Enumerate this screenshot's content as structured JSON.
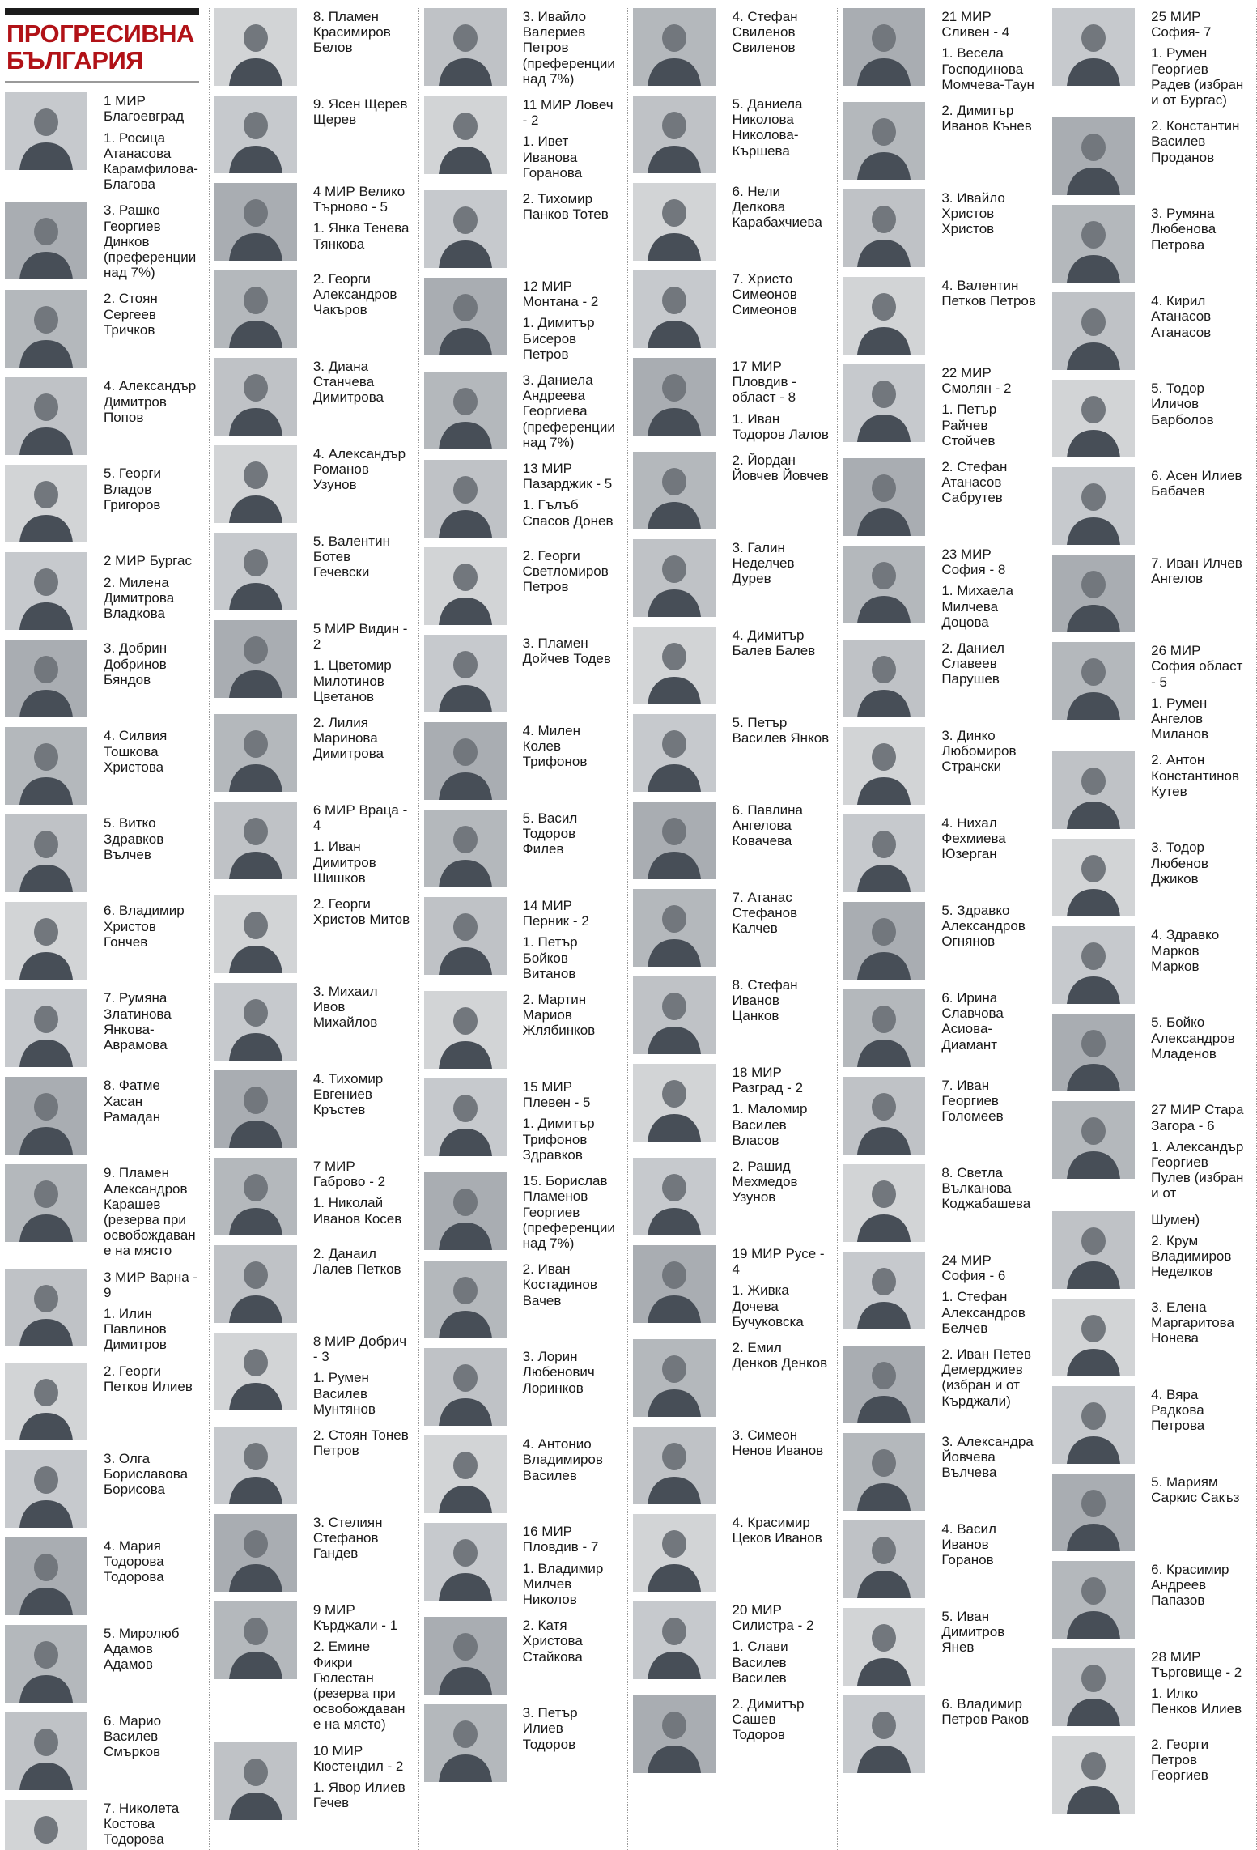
{
  "header": {
    "party_name": "ПРОГРЕСИВНА БЪЛГАРИЯ",
    "title_color": "#b11217",
    "top_bar_color": "#1c1c1c"
  },
  "columns": [
    {
      "entries": [
        {
          "texts": [
            "1 МИР Благоевград",
            "1. Росица Атанасова Карамфилова-Благова"
          ]
        },
        {
          "texts": [
            "3. Рашко Георгиев Динков (преференции над 7%)"
          ]
        },
        {
          "texts": [
            "2. Стоян Сергеев Тричков"
          ]
        },
        {
          "texts": [
            "4. Александър Димитров Попов"
          ]
        },
        {
          "texts": [
            "5. Георги Владов Григоров"
          ]
        },
        {
          "texts": [
            "2 МИР Бургас",
            "2. Милена Димитрова Владкова"
          ]
        },
        {
          "texts": [
            "3. Добрин Добринов Бяндов"
          ]
        },
        {
          "texts": [
            "4. Силвия Тошкова Христова"
          ]
        },
        {
          "texts": [
            "5. Витко Здравков Вълчев"
          ]
        },
        {
          "texts": [
            "6. Владимир Христов Гончев"
          ]
        },
        {
          "texts": [
            "7. Румяна Златинова Янкова-Аврамова"
          ]
        },
        {
          "texts": [
            "8. Фатме Хасан Рамадан"
          ]
        },
        {
          "texts": [
            "9. Пламен Александров Карашев (резерва при освобождаване на място"
          ]
        },
        {
          "texts": [
            "3 МИР Варна - 9",
            "1. Илин Павлинов Димитров"
          ]
        },
        {
          "texts": [
            "2. Георги Петков Илиев"
          ]
        },
        {
          "texts": [
            "3. Олга Бориславова Борисова"
          ]
        },
        {
          "texts": [
            "4. Мария Тодорова Тодорова"
          ]
        },
        {
          "texts": [
            "5. Миролюб Адамов Адамов"
          ]
        },
        {
          "texts": [
            "6. Марио Василев Смърков"
          ]
        },
        {
          "texts": [
            "7. Николета Костова Тодорова"
          ]
        }
      ]
    },
    {
      "entries": [
        {
          "texts": [
            "8. Пламен Красимиров Белов"
          ]
        },
        {
          "texts": [
            "9. Ясен Щерев Щерев"
          ]
        },
        {
          "texts": [
            "4 МИР Велико Търново - 5",
            "1. Янка Тенева Тянкова"
          ]
        },
        {
          "texts": [
            "2. Георги Александров Чакъров"
          ]
        },
        {
          "texts": [
            "3. Диана Станчева Димитрова"
          ]
        },
        {
          "texts": [
            "4. Александър Романов Узунов"
          ]
        },
        {
          "texts": [
            "5. Валентин Ботев Гечевски"
          ]
        },
        {
          "texts": [
            "5 МИР Видин - 2",
            "1. Цветомир Милотинов Цветанов"
          ]
        },
        {
          "texts": [
            "2. Лилия Маринова Димитрова"
          ]
        },
        {
          "texts": [
            "6 МИР Враца - 4",
            "1. Иван Димитров Шишков"
          ]
        },
        {
          "texts": [
            "2. Георги Христов Митов"
          ]
        },
        {
          "texts": [
            "3. Михаил Ивов Михайлов"
          ]
        },
        {
          "texts": [
            "4. Тихомир Евгениев Кръстев"
          ]
        },
        {
          "texts": [
            "7 МИР Габрово - 2",
            "1. Николай Иванов Косев"
          ]
        },
        {
          "texts": [
            "2. Данаил Лалев Петков"
          ]
        },
        {
          "texts": [
            "8 МИР Добрич - 3",
            "1. Румен Василев Мунтянов"
          ]
        },
        {
          "texts": [
            "2. Стоян Тонев Петров"
          ]
        },
        {
          "texts": [
            "3. Стелиян Стефанов Гандев"
          ]
        },
        {
          "texts": [
            "9 МИР Кърджали - 1",
            "2. Емине Фикри Гюлестан (резерва при освобождаване на място)"
          ]
        },
        {
          "texts": [
            "10 МИР Кюстендил - 2",
            "1. Явор Илиев Гечев"
          ]
        }
      ]
    },
    {
      "entries": [
        {
          "texts": [
            "3. Ивайло Валериев Петров (преференции над 7%)"
          ]
        },
        {
          "texts": [
            "11 МИР Ловеч - 2",
            "1. Ивет Иванова Горанова"
          ]
        },
        {
          "texts": [
            "2. Тихомир Панков Тотев"
          ]
        },
        {
          "texts": [
            "12 МИР Монтана - 2",
            "1. Димитър Бисеров Петров"
          ]
        },
        {
          "texts": [
            "3. Даниела Андреева Георгиева (преференции над 7%)"
          ]
        },
        {
          "texts": [
            "13 МИР Пазарджик - 5",
            "1. Гълъб Спасов Донев"
          ]
        },
        {
          "texts": [
            "2. Георги Светломиров Петров"
          ]
        },
        {
          "texts": [
            "3. Пламен Дойчев Тодев"
          ]
        },
        {
          "texts": [
            "4. Милен Колев Трифонов"
          ]
        },
        {
          "texts": [
            "5. Васил Тодоров Филев"
          ]
        },
        {
          "texts": [
            "14 МИР Перник - 2",
            "1. Петър Бойков Витанов"
          ]
        },
        {
          "texts": [
            "2. Мартин Мариов Жлябинков"
          ]
        },
        {
          "texts": [
            "15 МИР Плевен - 5",
            "1. Димитър Трифонов Здравков"
          ]
        },
        {
          "texts": [
            "15. Борислав Пламенов Георгиев (преференции над 7%)"
          ]
        },
        {
          "texts": [
            "2. Иван Костадинов Вачев"
          ]
        },
        {
          "texts": [
            "3. Лорин Любенович Лоринков"
          ]
        },
        {
          "texts": [
            "4. Антонио Владимиров Василев"
          ]
        },
        {
          "texts": [
            "16 МИР Пловдив - 7",
            "1. Владимир Милчев Николов"
          ]
        },
        {
          "texts": [
            "2. Катя Христова Стайкова"
          ]
        },
        {
          "texts": [
            "3. Петър Илиев Тодоров"
          ]
        }
      ]
    },
    {
      "entries": [
        {
          "texts": [
            "4. Стефан Свиленов Свиленов"
          ]
        },
        {
          "texts": [
            "5. Даниела Николова Николова-Кършева"
          ]
        },
        {
          "texts": [
            "6. Нели Делкова Карабахчиева"
          ]
        },
        {
          "texts": [
            "7. Христо Симеонов Симеонов"
          ]
        },
        {
          "texts": [
            "17 МИР Пловдив - област - 8",
            "1. Иван Тодоров Лалов"
          ]
        },
        {
          "texts": [
            "2. Йордан Йовчев Йовчев"
          ]
        },
        {
          "texts": [
            "3. Галин Неделчев Дурев"
          ]
        },
        {
          "texts": [
            "4. Димитър Балев Балев"
          ]
        },
        {
          "texts": [
            "5. Петър Василев Янков"
          ]
        },
        {
          "texts": [
            "6. Павлина Ангелова Ковачева"
          ]
        },
        {
          "texts": [
            "7. Атанас Стефанов Калчев"
          ]
        },
        {
          "texts": [
            "8. Стефан Иванов Цанков"
          ]
        },
        {
          "texts": [
            "18 МИР Разград - 2",
            "1. Маломир Василев Власов"
          ]
        },
        {
          "texts": [
            "2. Рашид Мехмедов Узунов"
          ]
        },
        {
          "texts": [
            "19 МИР Русе - 4",
            "1. Живка Дочева Бучуковска"
          ]
        },
        {
          "texts": [
            "2. Емил Денков Денков"
          ]
        },
        {
          "texts": [
            "3. Симеон Ненов Иванов"
          ]
        },
        {
          "texts": [
            "4. Красимир Цеков Иванов"
          ]
        },
        {
          "texts": [
            "20 МИР Силистра - 2",
            "1. Слави Василев Василев"
          ]
        },
        {
          "texts": [
            "2. Димитър Сашев Тодоров"
          ]
        }
      ]
    },
    {
      "entries": [
        {
          "texts": [
            "21 МИР Сливен - 4",
            "1. Весела Господинова Момчева-Таун"
          ]
        },
        {
          "texts": [
            "2. Димитър Иванов Кънев"
          ]
        },
        {
          "texts": [
            "3. Ивайло Христов Христов"
          ]
        },
        {
          "texts": [
            "4. Валентин Петков Петров"
          ]
        },
        {
          "texts": [
            "22 МИР Смолян - 2",
            "1. Петър Райчев Стойчев"
          ]
        },
        {
          "texts": [
            "2. Стефан Атанасов Сабрутев"
          ]
        },
        {
          "texts": [
            "23 МИР София - 8",
            "1. Михаела Милчева Доцова"
          ]
        },
        {
          "texts": [
            "2. Даниел Славеев Парушев"
          ]
        },
        {
          "texts": [
            "3. Динко Любомиров Странски"
          ]
        },
        {
          "texts": [
            "4. Нихал Фехмиева Юзерган"
          ]
        },
        {
          "texts": [
            "5. Здравко Александров Огнянов"
          ]
        },
        {
          "texts": [
            "6. Ирина Славчова Асиова-Диамант"
          ]
        },
        {
          "texts": [
            "7. Иван Георгиев Голомеев"
          ]
        },
        {
          "texts": [
            "8. Светла Вълканова Коджабашева"
          ]
        },
        {
          "texts": [
            "24 МИР София - 6",
            "1. Стефан Александров Белчев"
          ]
        },
        {
          "texts": [
            "2. Иван Петев Демерджиев (избран и от Кърджали)"
          ]
        },
        {
          "texts": [
            "3. Александра Йовчева Вълчева"
          ]
        },
        {
          "texts": [
            "4. Васил Иванов Горанов"
          ]
        },
        {
          "texts": [
            "5. Иван Димитров Янев"
          ]
        },
        {
          "texts": [
            "6. Владимир Петров Раков"
          ]
        }
      ]
    },
    {
      "entries": [
        {
          "texts": [
            "25 МИР София- 7",
            "1. Румен Георгиев Радев (избран и от Бургас)"
          ]
        },
        {
          "texts": [
            "2. Константин Василев Проданов"
          ]
        },
        {
          "texts": [
            "3. Румяна Любенова Петрова"
          ]
        },
        {
          "texts": [
            "4. Кирил Атанасов Атанасов"
          ]
        },
        {
          "texts": [
            "5. Тодор Иличов Барболов"
          ]
        },
        {
          "texts": [
            "6. Асен Илиев Бабачев"
          ]
        },
        {
          "texts": [
            "7. Иван Илчев Ангелов"
          ]
        },
        {
          "texts": [
            "26 МИР София област - 5",
            "1. Румен Ангелов Миланов"
          ]
        },
        {
          "texts": [
            "2. Антон Константинов Кутев"
          ]
        },
        {
          "texts": [
            "3. Тодор Любенов Джиков"
          ]
        },
        {
          "texts": [
            "4. Здравко Марков Марков"
          ]
        },
        {
          "texts": [
            "5. Бойко Александров Младенов"
          ]
        },
        {
          "texts": [
            "27 МИР Стара Загора - 6",
            "1. Александър Георгиев Пулев (избран и от"
          ]
        },
        {
          "texts": [
            "Шумен)",
            "2. Крум Владимиров Неделков"
          ]
        },
        {
          "texts": [
            "3. Елена Маргаритова Нонева"
          ]
        },
        {
          "texts": [
            "4. Вяра Радкова Петрова"
          ]
        },
        {
          "texts": [
            "5. Мариям Саркис Сакъз"
          ]
        },
        {
          "texts": [
            "6. Красимир Андреев Папазов"
          ]
        },
        {
          "texts": [
            "28 МИР Търговище - 2",
            "1. Илко Пенков Илиев"
          ]
        },
        {
          "texts": [
            "2. Георги Петров Георгиев"
          ]
        }
      ]
    }
  ]
}
